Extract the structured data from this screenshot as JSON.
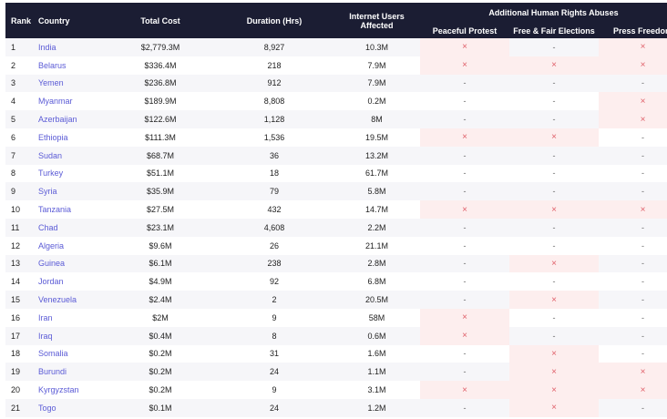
{
  "headers": {
    "rank": "Rank",
    "country": "Country",
    "total_cost": "Total Cost",
    "duration": "Duration (Hrs)",
    "users_line1": "Internet Users",
    "users_line2": "Affected",
    "abuses_group": "Additional Human Rights Abuses",
    "peaceful_protest": "Peaceful Protest",
    "fair_elections": "Free & Fair Elections",
    "press_freedom": "Press Freedom"
  },
  "marks": {
    "yes": "×",
    "no": "-"
  },
  "rows": [
    {
      "rank": "1",
      "country": "India",
      "cost": "$2,779.3M",
      "duration": "8,927",
      "users": "10.3M",
      "pp": true,
      "ffe": false,
      "pf": true
    },
    {
      "rank": "2",
      "country": "Belarus",
      "cost": "$336.4M",
      "duration": "218",
      "users": "7.9M",
      "pp": true,
      "ffe": true,
      "pf": true
    },
    {
      "rank": "3",
      "country": "Yemen",
      "cost": "$236.8M",
      "duration": "912",
      "users": "7.9M",
      "pp": false,
      "ffe": false,
      "pf": false
    },
    {
      "rank": "4",
      "country": "Myanmar",
      "cost": "$189.9M",
      "duration": "8,808",
      "users": "0.2M",
      "pp": false,
      "ffe": false,
      "pf": true
    },
    {
      "rank": "5",
      "country": "Azerbaijan",
      "cost": "$122.6M",
      "duration": "1,128",
      "users": "8M",
      "pp": false,
      "ffe": false,
      "pf": true
    },
    {
      "rank": "6",
      "country": "Ethiopia",
      "cost": "$111.3M",
      "duration": "1,536",
      "users": "19.5M",
      "pp": true,
      "ffe": true,
      "pf": false
    },
    {
      "rank": "7",
      "country": "Sudan",
      "cost": "$68.7M",
      "duration": "36",
      "users": "13.2M",
      "pp": false,
      "ffe": false,
      "pf": false
    },
    {
      "rank": "8",
      "country": "Turkey",
      "cost": "$51.1M",
      "duration": "18",
      "users": "61.7M",
      "pp": false,
      "ffe": false,
      "pf": false
    },
    {
      "rank": "9",
      "country": "Syria",
      "cost": "$35.9M",
      "duration": "79",
      "users": "5.8M",
      "pp": false,
      "ffe": false,
      "pf": false
    },
    {
      "rank": "10",
      "country": "Tanzania",
      "cost": "$27.5M",
      "duration": "432",
      "users": "14.7M",
      "pp": true,
      "ffe": true,
      "pf": true
    },
    {
      "rank": "11",
      "country": "Chad",
      "cost": "$23.1M",
      "duration": "4,608",
      "users": "2.2M",
      "pp": false,
      "ffe": false,
      "pf": false
    },
    {
      "rank": "12",
      "country": "Algeria",
      "cost": "$9.6M",
      "duration": "26",
      "users": "21.1M",
      "pp": false,
      "ffe": false,
      "pf": false
    },
    {
      "rank": "13",
      "country": "Guinea",
      "cost": "$6.1M",
      "duration": "238",
      "users": "2.8M",
      "pp": false,
      "ffe": true,
      "pf": false
    },
    {
      "rank": "14",
      "country": "Jordan",
      "cost": "$4.9M",
      "duration": "92",
      "users": "6.8M",
      "pp": false,
      "ffe": false,
      "pf": false
    },
    {
      "rank": "15",
      "country": "Venezuela",
      "cost": "$2.4M",
      "duration": "2",
      "users": "20.5M",
      "pp": false,
      "ffe": true,
      "pf": false
    },
    {
      "rank": "16",
      "country": "Iran",
      "cost": "$2M",
      "duration": "9",
      "users": "58M",
      "pp": true,
      "ffe": false,
      "pf": false
    },
    {
      "rank": "17",
      "country": "Iraq",
      "cost": "$0.4M",
      "duration": "8",
      "users": "0.6M",
      "pp": true,
      "ffe": false,
      "pf": false
    },
    {
      "rank": "18",
      "country": "Somalia",
      "cost": "$0.2M",
      "duration": "31",
      "users": "1.6M",
      "pp": false,
      "ffe": true,
      "pf": false
    },
    {
      "rank": "19",
      "country": "Burundi",
      "cost": "$0.2M",
      "duration": "24",
      "users": "1.1M",
      "pp": false,
      "ffe": true,
      "pf": true
    },
    {
      "rank": "20",
      "country": "Kyrgyzstan",
      "cost": "$0.2M",
      "duration": "9",
      "users": "3.1M",
      "pp": true,
      "ffe": true,
      "pf": true
    },
    {
      "rank": "21",
      "country": "Togo",
      "cost": "$0.1M",
      "duration": "24",
      "users": "1.2M",
      "pp": false,
      "ffe": true,
      "pf": false
    }
  ]
}
